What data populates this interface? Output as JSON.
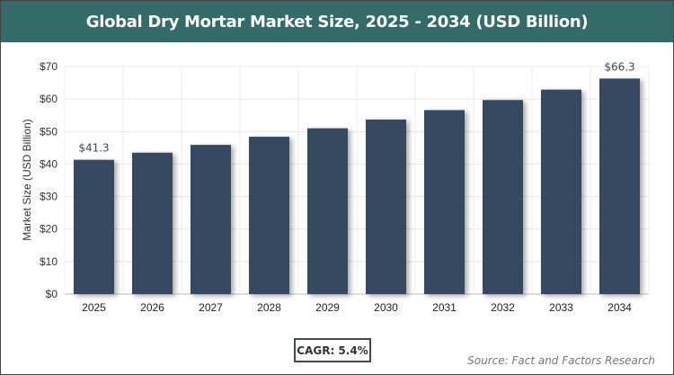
{
  "chart_data": {
    "type": "bar",
    "title": "Global Dry Mortar Market Size, 2025 - 2034 (USD Billion)",
    "ylabel": "Market Size (USD Billion)",
    "xlabel": "",
    "categories": [
      "2025",
      "2026",
      "2027",
      "2028",
      "2029",
      "2030",
      "2031",
      "2032",
      "2033",
      "2034"
    ],
    "values": [
      41.3,
      43.5,
      45.9,
      48.4,
      51.0,
      53.7,
      56.6,
      59.7,
      62.9,
      66.3
    ],
    "data_labels": {
      "0": "$41.3",
      "9": "$66.3"
    },
    "ylim": [
      0,
      70
    ],
    "yticks": [
      "$0",
      "$10",
      "$20",
      "$30",
      "$40",
      "$50",
      "$60",
      "$70"
    ],
    "grid": true,
    "bar_color": "#364a60"
  },
  "cagr_label": "CAGR: 5.4%",
  "source": "Source: Fact and Factors Research"
}
